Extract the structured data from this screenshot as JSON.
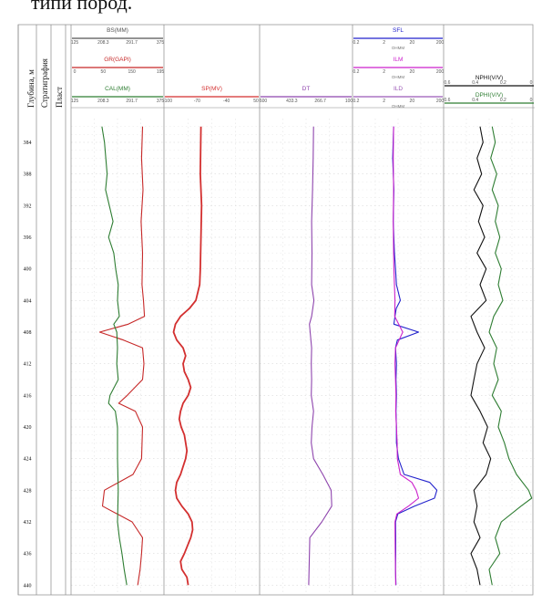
{
  "top_text": "типи пород.",
  "headers": {
    "depth": "Глубина, м",
    "strat": "Стратиграфия",
    "layer": "Пласт"
  },
  "colors": {
    "cal": "#2e7d32",
    "gr": "#c62828",
    "bs": "#555555",
    "sp": "#d32f2f",
    "dt": "#8e44ad",
    "sfl": "#2222cc",
    "ilm": "#cc22cc",
    "ild": "#9b59b6",
    "nphi": "#111111",
    "dphi": "#2e7d32"
  },
  "chart_data": {
    "type": "line",
    "depth_axis": {
      "label": "Глубина, м",
      "range": [
        381,
        441
      ],
      "ticks": [
        384,
        388,
        392,
        396,
        400,
        404,
        408,
        412,
        416,
        420,
        424,
        428,
        432,
        436,
        440
      ]
    },
    "tracks": [
      {
        "id": "track1",
        "curves": [
          {
            "name": "BS(MM)",
            "ticks": [
              "125",
              "208.3",
              "291.7",
              "375"
            ],
            "color": "bs"
          },
          {
            "name": "GR(GAPI)",
            "ticks": [
              "0",
              "50",
              "150",
              "195"
            ],
            "color": "gr"
          },
          {
            "name": "CAL(MM)",
            "ticks": [
              "125",
              "208.3",
              "291.7",
              "375"
            ],
            "color": "cal"
          }
        ]
      },
      {
        "id": "track2",
        "curves": [
          {
            "name": "SP(MV)",
            "ticks": [
              "-100",
              "-70",
              "-40",
              "50"
            ],
            "color": "sp"
          }
        ]
      },
      {
        "id": "track3",
        "curves": [
          {
            "name": "DT",
            "ticks": [
              "600",
              "433.3",
              "266.7",
              "100"
            ],
            "color": "dt"
          }
        ]
      },
      {
        "id": "track4",
        "curves": [
          {
            "name": "SFL",
            "unit": "OHMM",
            "ticks": [
              "0.2",
              "2",
              "20",
              "200"
            ],
            "color": "sfl"
          },
          {
            "name": "ILM",
            "unit": "OHMM",
            "ticks": [
              "0.2",
              "2",
              "20",
              "200"
            ],
            "color": "ilm"
          },
          {
            "name": "ILD",
            "unit": "OHMM",
            "ticks": [
              "0.2",
              "2",
              "20",
              "200"
            ],
            "color": "ild"
          }
        ]
      },
      {
        "id": "track5",
        "curves": [
          {
            "name": "NPHI(V/V)",
            "ticks": [
              "0.6",
              "0.4",
              "0.2",
              "0"
            ],
            "color": "nphi"
          },
          {
            "name": "DPHI(V/V)",
            "ticks": [
              "0.6",
              "0.4",
              "0.2",
              "0"
            ],
            "color": "dphi"
          }
        ]
      }
    ],
    "series": [
      {
        "key": "gr",
        "track": "track1",
        "points": [
          [
            382,
            150
          ],
          [
            386,
            148
          ],
          [
            390,
            151
          ],
          [
            394,
            147
          ],
          [
            398,
            150
          ],
          [
            402,
            149
          ],
          [
            404,
            152
          ],
          [
            406,
            154
          ],
          [
            407,
            120
          ],
          [
            408,
            60
          ],
          [
            409,
            110
          ],
          [
            410,
            150
          ],
          [
            412,
            153
          ],
          [
            414,
            150
          ],
          [
            416,
            118
          ],
          [
            417,
            100
          ],
          [
            418,
            135
          ],
          [
            420,
            150
          ],
          [
            424,
            148
          ],
          [
            426,
            130
          ],
          [
            428,
            70
          ],
          [
            430,
            66
          ],
          [
            432,
            128
          ],
          [
            434,
            150
          ],
          [
            436,
            148
          ],
          [
            438,
            145
          ],
          [
            440,
            140
          ]
        ]
      },
      {
        "key": "cal",
        "track": "track1",
        "points": [
          [
            382,
            208
          ],
          [
            384,
            215
          ],
          [
            388,
            222
          ],
          [
            390,
            218
          ],
          [
            392,
            228
          ],
          [
            394,
            238
          ],
          [
            396,
            226
          ],
          [
            398,
            240
          ],
          [
            400,
            245
          ],
          [
            402,
            252
          ],
          [
            404,
            250
          ],
          [
            406,
            255
          ],
          [
            407,
            240
          ],
          [
            408,
            248
          ],
          [
            410,
            250
          ],
          [
            412,
            248
          ],
          [
            414,
            252
          ],
          [
            416,
            230
          ],
          [
            417,
            226
          ],
          [
            418,
            244
          ],
          [
            420,
            250
          ],
          [
            424,
            250
          ],
          [
            428,
            252
          ],
          [
            432,
            250
          ],
          [
            434,
            255
          ],
          [
            436,
            262
          ],
          [
            438,
            268
          ],
          [
            440,
            275
          ]
        ]
      },
      {
        "key": "sp",
        "track": "track2",
        "points": [
          [
            382,
            -42
          ],
          [
            388,
            -43
          ],
          [
            392,
            -41
          ],
          [
            396,
            -42
          ],
          [
            400,
            -43
          ],
          [
            402,
            -44
          ],
          [
            404,
            -50
          ],
          [
            405,
            -60
          ],
          [
            406,
            -74
          ],
          [
            407,
            -82
          ],
          [
            408,
            -85
          ],
          [
            409,
            -80
          ],
          [
            410,
            -70
          ],
          [
            411,
            -66
          ],
          [
            412,
            -70
          ],
          [
            413,
            -68
          ],
          [
            414,
            -62
          ],
          [
            415,
            -58
          ],
          [
            416,
            -62
          ],
          [
            417,
            -70
          ],
          [
            418,
            -74
          ],
          [
            419,
            -76
          ],
          [
            420,
            -73
          ],
          [
            421,
            -68
          ],
          [
            422,
            -66
          ],
          [
            423,
            -64
          ],
          [
            424,
            -66
          ],
          [
            425,
            -70
          ],
          [
            426,
            -74
          ],
          [
            427,
            -80
          ],
          [
            428,
            -82
          ],
          [
            429,
            -80
          ],
          [
            430,
            -72
          ],
          [
            431,
            -62
          ],
          [
            432,
            -56
          ],
          [
            433,
            -55
          ],
          [
            434,
            -58
          ],
          [
            436,
            -68
          ],
          [
            437,
            -74
          ],
          [
            438,
            -72
          ],
          [
            439,
            -64
          ],
          [
            440,
            -62
          ]
        ]
      },
      {
        "key": "dt",
        "track": "track3",
        "points": [
          [
            382,
            310
          ],
          [
            386,
            312
          ],
          [
            390,
            315
          ],
          [
            394,
            320
          ],
          [
            398,
            318
          ],
          [
            402,
            320
          ],
          [
            404,
            308
          ],
          [
            406,
            320
          ],
          [
            407,
            332
          ],
          [
            408,
            328
          ],
          [
            410,
            320
          ],
          [
            412,
            322
          ],
          [
            414,
            320
          ],
          [
            416,
            322
          ],
          [
            418,
            310
          ],
          [
            420,
            318
          ],
          [
            422,
            322
          ],
          [
            424,
            310
          ],
          [
            426,
            260
          ],
          [
            428,
            215
          ],
          [
            430,
            212
          ],
          [
            432,
            265
          ],
          [
            434,
            330
          ],
          [
            436,
            332
          ],
          [
            438,
            334
          ],
          [
            440,
            336
          ]
        ]
      },
      {
        "key": "sfl",
        "track": "track4",
        "points": [
          [
            382,
            4.5
          ],
          [
            386,
            4.2
          ],
          [
            390,
            4.6
          ],
          [
            394,
            4.4
          ],
          [
            398,
            4.8
          ],
          [
            400,
            5.2
          ],
          [
            402,
            5.6
          ],
          [
            404,
            7.5
          ],
          [
            405,
            5.5
          ],
          [
            406,
            5.0
          ],
          [
            407,
            4.6
          ],
          [
            408,
            30
          ],
          [
            409,
            6
          ],
          [
            410,
            5.2
          ],
          [
            412,
            5.6
          ],
          [
            414,
            5.4
          ],
          [
            416,
            5.6
          ],
          [
            418,
            5.4
          ],
          [
            420,
            5.6
          ],
          [
            422,
            5.6
          ],
          [
            424,
            6.5
          ],
          [
            426,
            10
          ],
          [
            427,
            70
          ],
          [
            428,
            120
          ],
          [
            429,
            100
          ],
          [
            430,
            22
          ],
          [
            431,
            6.2
          ],
          [
            432,
            5.2
          ],
          [
            434,
            5.3
          ],
          [
            436,
            5.3
          ],
          [
            438,
            5.2
          ],
          [
            440,
            5.4
          ]
        ]
      },
      {
        "key": "ilm",
        "track": "track4",
        "points": [
          [
            382,
            4.5
          ],
          [
            386,
            4.4
          ],
          [
            390,
            4.5
          ],
          [
            394,
            4.4
          ],
          [
            398,
            4.5
          ],
          [
            400,
            4.6
          ],
          [
            402,
            4.8
          ],
          [
            404,
            5.0
          ],
          [
            406,
            4.9
          ],
          [
            408,
            9
          ],
          [
            410,
            5.2
          ],
          [
            412,
            5.0
          ],
          [
            414,
            5.2
          ],
          [
            416,
            5.4
          ],
          [
            418,
            5.3
          ],
          [
            420,
            5.6
          ],
          [
            422,
            5.9
          ],
          [
            424,
            6.0
          ],
          [
            426,
            7.5
          ],
          [
            427,
            18
          ],
          [
            428,
            25
          ],
          [
            429,
            30
          ],
          [
            430,
            14
          ],
          [
            431,
            5.8
          ],
          [
            432,
            5.0
          ],
          [
            436,
            5.1
          ],
          [
            440,
            5.3
          ]
        ]
      },
      {
        "key": "nphi",
        "track": "track5",
        "points": [
          [
            382,
            0.36
          ],
          [
            384,
            0.34
          ],
          [
            386,
            0.38
          ],
          [
            388,
            0.35
          ],
          [
            390,
            0.4
          ],
          [
            392,
            0.34
          ],
          [
            394,
            0.37
          ],
          [
            396,
            0.33
          ],
          [
            398,
            0.38
          ],
          [
            400,
            0.32
          ],
          [
            402,
            0.36
          ],
          [
            404,
            0.32
          ],
          [
            406,
            0.42
          ],
          [
            408,
            0.38
          ],
          [
            410,
            0.33
          ],
          [
            412,
            0.38
          ],
          [
            414,
            0.4
          ],
          [
            416,
            0.42
          ],
          [
            418,
            0.36
          ],
          [
            420,
            0.31
          ],
          [
            422,
            0.34
          ],
          [
            424,
            0.29
          ],
          [
            426,
            0.32
          ],
          [
            428,
            0.4
          ],
          [
            430,
            0.38
          ],
          [
            432,
            0.4
          ],
          [
            434,
            0.36
          ],
          [
            436,
            0.42
          ],
          [
            438,
            0.38
          ],
          [
            440,
            0.36
          ]
        ]
      },
      {
        "key": "dphi",
        "track": "track5",
        "points": [
          [
            382,
            0.28
          ],
          [
            384,
            0.26
          ],
          [
            386,
            0.29
          ],
          [
            388,
            0.25
          ],
          [
            390,
            0.28
          ],
          [
            392,
            0.24
          ],
          [
            394,
            0.26
          ],
          [
            396,
            0.23
          ],
          [
            398,
            0.26
          ],
          [
            400,
            0.22
          ],
          [
            402,
            0.24
          ],
          [
            404,
            0.21
          ],
          [
            406,
            0.27
          ],
          [
            408,
            0.3
          ],
          [
            410,
            0.25
          ],
          [
            412,
            0.27
          ],
          [
            414,
            0.24
          ],
          [
            416,
            0.28
          ],
          [
            418,
            0.22
          ],
          [
            420,
            0.24
          ],
          [
            422,
            0.2
          ],
          [
            424,
            0.17
          ],
          [
            426,
            0.12
          ],
          [
            428,
            0.04
          ],
          [
            429,
            0.02
          ],
          [
            430,
            0.09
          ],
          [
            432,
            0.22
          ],
          [
            434,
            0.26
          ],
          [
            436,
            0.23
          ],
          [
            438,
            0.3
          ],
          [
            440,
            0.28
          ]
        ]
      }
    ]
  }
}
